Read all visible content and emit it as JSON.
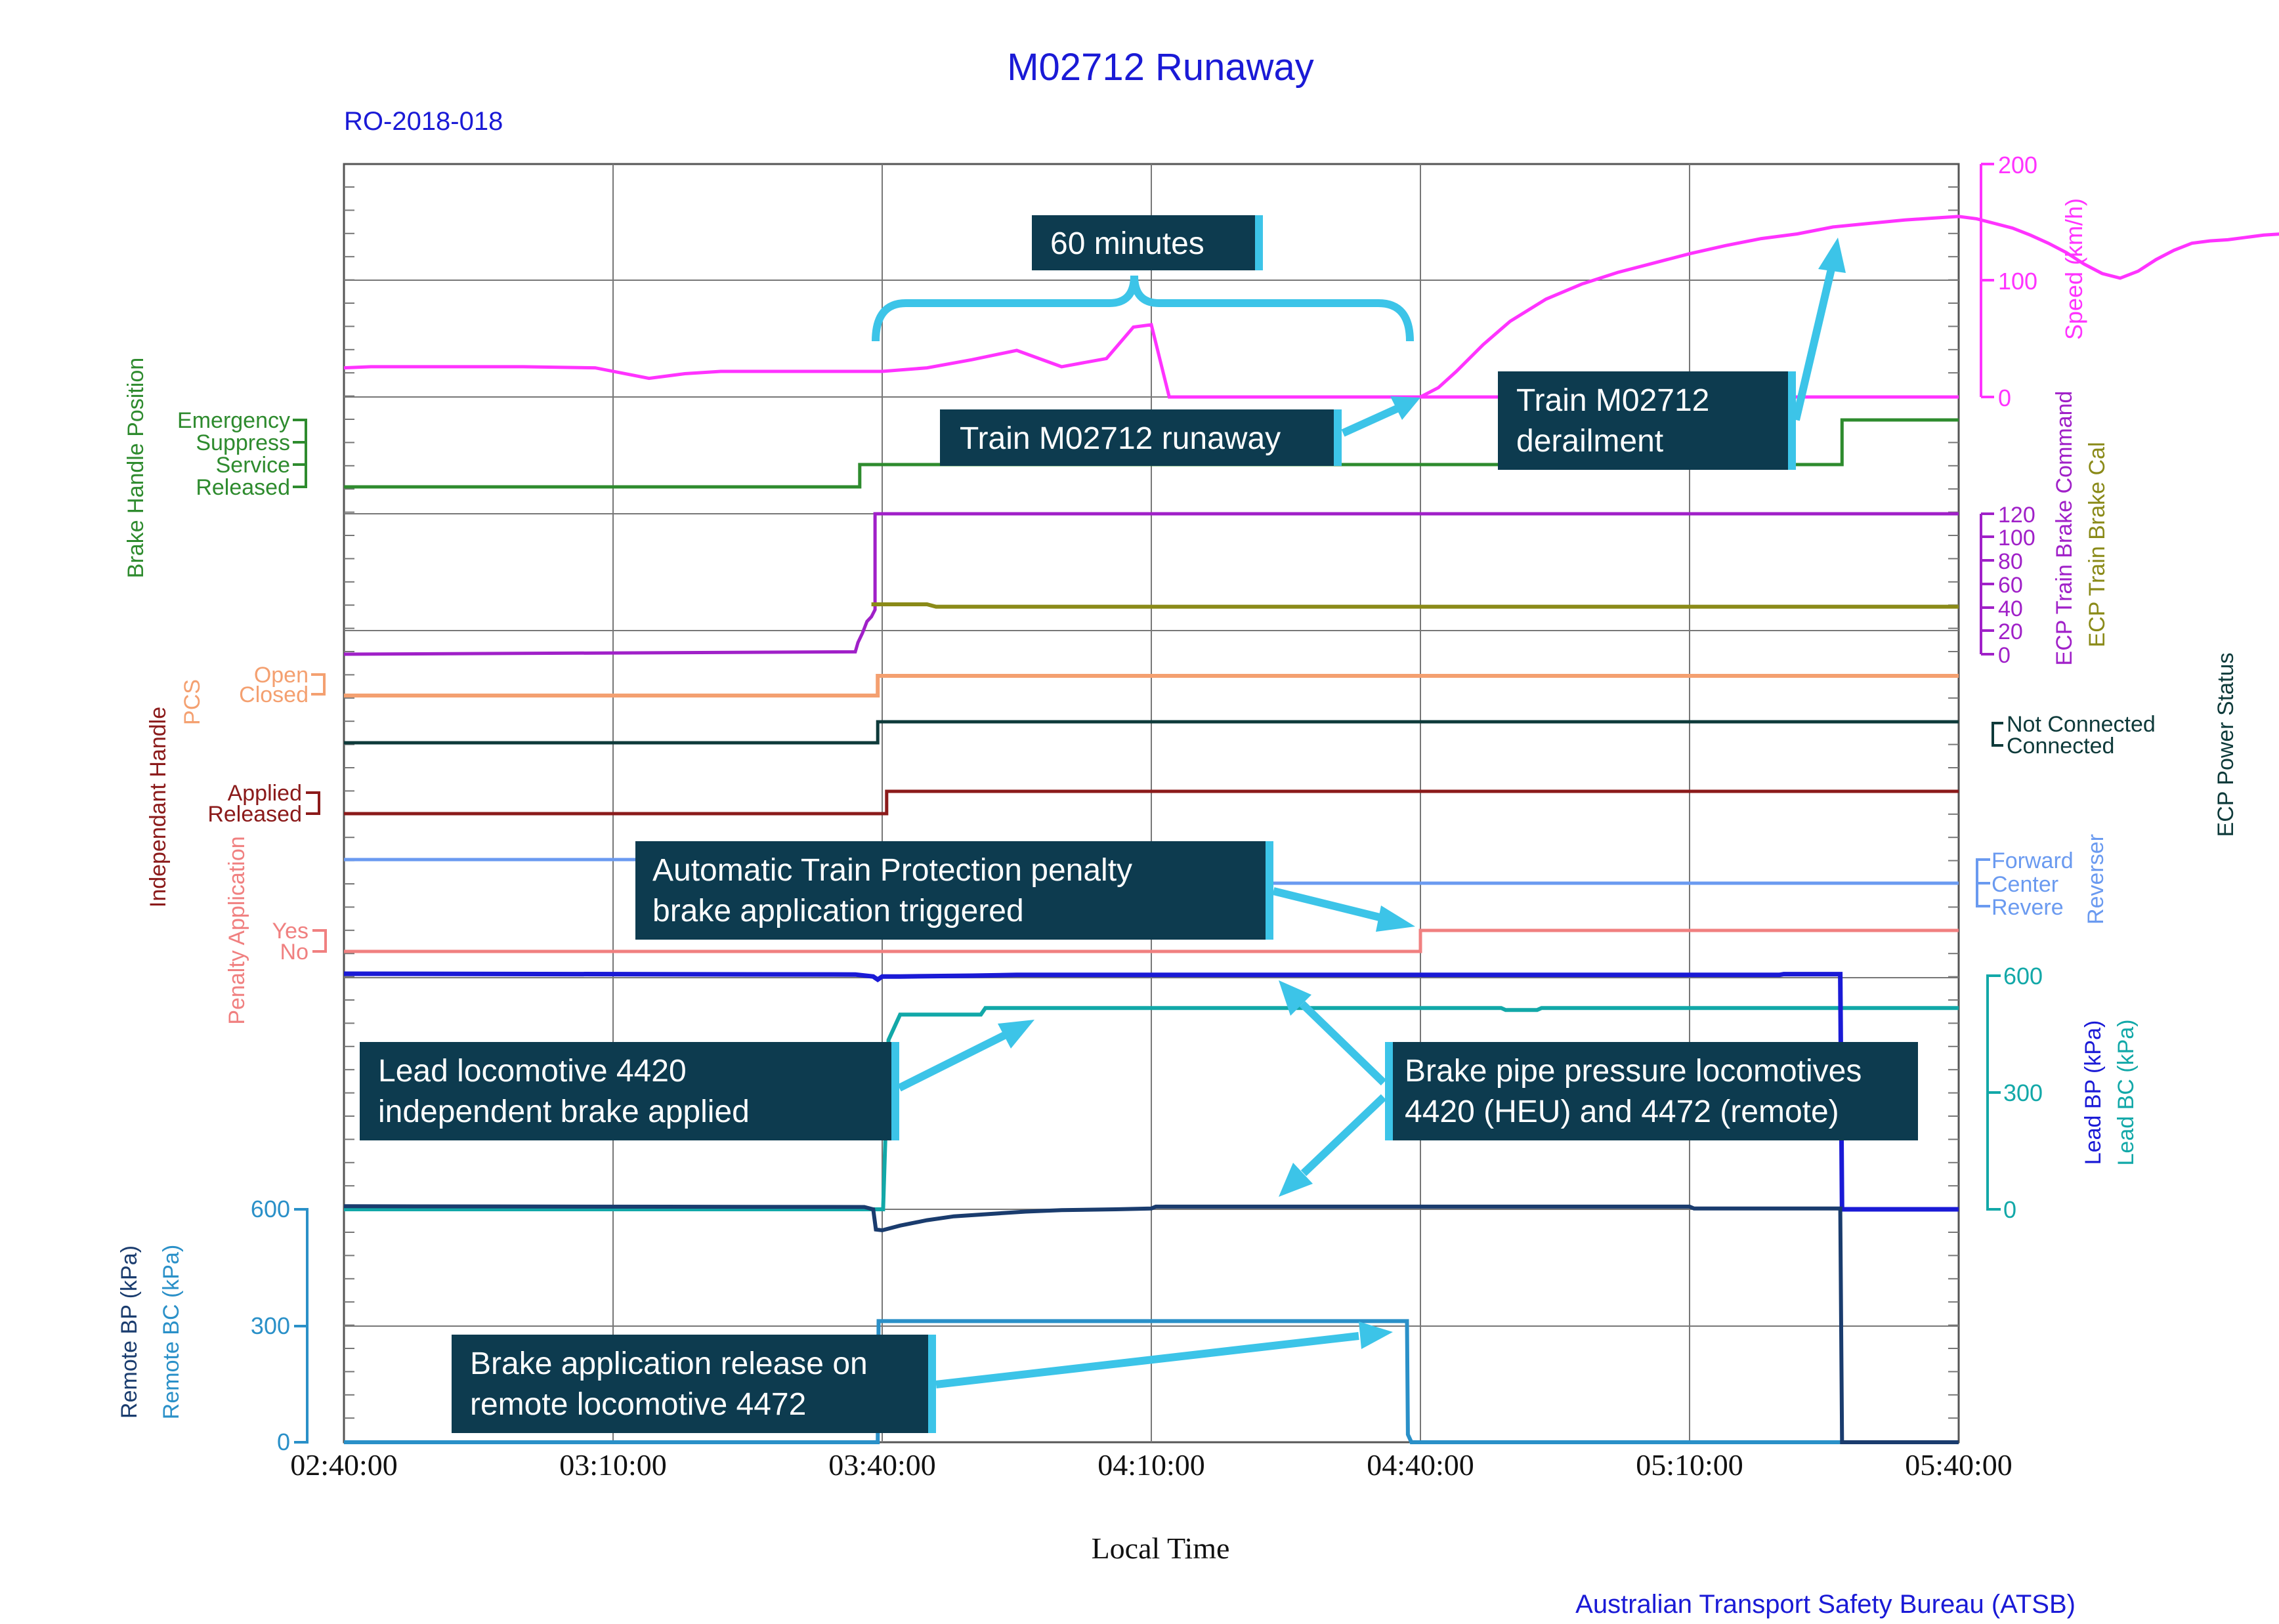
{
  "chart_data": {
    "type": "line",
    "title": "M02712 Runaway",
    "subtitle": "RO-2018-018",
    "xlabel": "Local Time",
    "credit": "Australian Transport Safety Bureau (ATSB)",
    "x_ticks": [
      "02:40:00",
      "03:10:00",
      "03:40:00",
      "04:10:00",
      "04:40:00",
      "05:10:00",
      "05:40:00"
    ],
    "x_range_minutes_after_0240": [
      0,
      180
    ],
    "colors": {
      "title": "#1a1ad6",
      "speed": "#ff33ff",
      "brake_handle": "#2e8b2e",
      "brake_cmd": "#a020c8",
      "brake_cal": "#8a8a18",
      "pcs": "#f4a070",
      "power": "#0e3a3a",
      "independent": "#8b1a1a",
      "reverser": "#6a9af0",
      "penalty": "#f08080",
      "lead_bp": "#1a1ad6",
      "lead_bc": "#12a8a8",
      "remote_bp": "#1a3c6e",
      "remote_bc": "#2a90c8",
      "callout_bg": "#0d3b4f",
      "callout_accent": "#3cc4e8"
    },
    "panels": {
      "speed": {
        "label": "Speed (km/h)",
        "ticks": [
          "200",
          "100",
          "0"
        ],
        "range": [
          0,
          200
        ],
        "series": [
          {
            "x": [
              0,
              3,
              10,
              20,
              28,
              34,
              38,
              42,
              45,
              50,
              55,
              60,
              65,
              70,
              75,
              80,
              85,
              88,
              90,
              92,
              94,
              95,
              95.5,
              96,
              100,
              110,
              120,
              130,
              140,
              150,
              155,
              160,
              165,
              170,
              175,
              180
            ],
            "y": [
              25,
              26,
              26,
              26,
              25,
              16,
              20,
              22,
              22,
              22,
              22,
              22,
              25,
              32,
              40,
              26,
              33,
              60,
              62,
              0,
              0,
              0,
              0,
              0,
              0,
              0,
              0,
              0,
              0,
              0,
              0,
              0,
              0,
              0,
              0,
              0
            ]
          },
          {
            "x": [
              120,
              122,
              124,
              127,
              130,
              134,
              138,
              142,
              146,
              150,
              154,
              158,
              162,
              166,
              170,
              174,
              178,
              180,
              182,
              184,
              186,
              188,
              190,
              192,
              194,
              196,
              198,
              200,
              202,
              204,
              206,
              208,
              210,
              212,
              214,
              216,
              218,
              219,
              220,
              222,
              225,
              230,
              235,
              240
            ],
            "y": [
              0,
              8,
              22,
              45,
              65,
              84,
              97,
              107,
              115,
              123,
              130,
              136,
              140,
              146,
              149,
              152,
              154,
              155,
              153,
              149,
              145,
              139,
              132,
              124,
              114,
              106,
              102,
              108,
              118,
              126,
              132,
              134,
              135,
              137,
              139,
              140,
              138,
              100,
              25,
              0,
              0,
              0,
              0,
              0
            ]
          }
        ]
      },
      "brake_handle": {
        "label": "Brake Handle Position",
        "states": [
          "Emergency",
          "Suppress",
          "Service",
          "Released"
        ],
        "series": [
          {
            "x": [
              0,
              57.5,
              57.5,
              167,
              167,
              180
            ],
            "y": [
              "Released",
              "Released",
              "Service",
              "Service",
              "Suppress+",
              "Suppress+"
            ]
          }
        ]
      },
      "ecp_brake": {
        "labels": [
          "ECP Train Brake Command",
          "ECP Train Brake Cal"
        ],
        "ticks": [
          "120",
          "100",
          "80",
          "60",
          "40",
          "20",
          "0"
        ],
        "range": [
          0,
          120
        ],
        "series": [
          {
            "name": "ECP Train Brake Command",
            "x": [
              0,
              57,
              57.3,
              57.8,
              58.3,
              58.8,
              59.2,
              59.2,
              180
            ],
            "y": [
              0,
              2,
              10,
              18,
              28,
              32,
              38,
              120,
              120
            ]
          },
          {
            "name": "ECP Train Brake Cal",
            "x": [
              58.8,
              59.3,
              65,
              66,
              68,
              180
            ],
            "y": [
              40,
              40,
              40,
              38,
              38,
              38
            ]
          }
        ]
      },
      "pcs": {
        "label": "PCS",
        "states": [
          "Open",
          "Closed"
        ],
        "series": [
          {
            "x": [
              0,
              59.5,
              59.5,
              180
            ],
            "y": [
              "Closed",
              "Closed",
              "Open",
              "Open"
            ]
          }
        ]
      },
      "ecp_power": {
        "label": "ECP Power Status",
        "states": [
          "Not Connected",
          "Connected"
        ],
        "series": [
          {
            "x": [
              0,
              59.5,
              59.5,
              180
            ],
            "y": [
              "Connected",
              "Connected",
              "Not Connected",
              "Not Connected"
            ]
          }
        ]
      },
      "independent": {
        "label": "Independant Handle",
        "states": [
          "Applied",
          "Released"
        ],
        "series": [
          {
            "x": [
              0,
              60.5,
              60.5,
              180
            ],
            "y": [
              "Released",
              "Released",
              "Applied",
              "Applied"
            ]
          }
        ]
      },
      "reverser": {
        "label": "Reverser",
        "states": [
          "Forward",
          "Center",
          "Revere"
        ],
        "series": [
          {
            "x": [
              0,
              100,
              100,
              180
            ],
            "y": [
              "Forward",
              "Forward",
              "Center",
              "Center"
            ]
          }
        ]
      },
      "penalty": {
        "label": "Penalty Application",
        "states": [
          "Yes",
          "No"
        ],
        "series": [
          {
            "x": [
              0,
              120,
              120,
              180
            ],
            "y": [
              "No",
              "No",
              "Yes",
              "Yes"
            ]
          }
        ]
      },
      "lead": {
        "labels": [
          "Lead BP (kPa)",
          "Lead BC (kPa)"
        ],
        "ticks": [
          "600",
          "300",
          "0"
        ],
        "range": [
          0,
          600
        ],
        "series": [
          {
            "name": "Lead BP (kPa)",
            "x": [
              0,
              57,
              59,
              59.5,
              60,
              62,
              70,
              75,
              80,
              100,
              140,
              160,
              160.5,
              166.8,
              167,
              167,
              180
            ],
            "y": [
              605,
              603,
              598,
              590,
              598,
              598,
              600,
              602,
              602,
              602,
              602,
              602,
              604,
              604,
              0,
              0,
              0
            ]
          },
          {
            "name": "Lead BC (kPa)",
            "x": [
              0,
              60,
              60.1,
              60.7,
              62,
              71,
              71.5,
              90,
              120,
              129,
              129.5,
              133,
              133.5,
              180
            ],
            "y": [
              0,
              0,
              0,
              435,
              500,
              500,
              517,
              517,
              517,
              517,
              512,
              512,
              517,
              517
            ]
          }
        ]
      },
      "remote": {
        "labels": [
          "Remote BP (kPa)",
          "Remote BC (kPa)"
        ],
        "ticks": [
          "600",
          "300",
          "0"
        ],
        "range": [
          0,
          600
        ],
        "series": [
          {
            "name": "Remote BP (kPa)",
            "x": [
              0,
              58,
              59,
              59.3,
              60,
              62,
              65,
              68,
              72,
              76,
              80,
              86,
              90,
              90.5,
              120,
              150,
              150.5,
              166,
              166.8,
              167,
              180
            ],
            "y": [
              608,
              606,
              600,
              548,
              546,
              558,
              572,
              582,
              588,
              594,
              598,
              600,
              602,
              607,
              607,
              607,
              602,
              602,
              602,
              0,
              0
            ]
          },
          {
            "name": "Remote BC (kPa)",
            "x": [
              0,
              59.5,
              59.6,
              118.5,
              118.6,
              119,
              180
            ],
            "y": [
              0,
              0,
              312,
              312,
              20,
              0,
              0
            ]
          }
        ]
      }
    },
    "annotations": {
      "sixty_minutes": "60 minutes",
      "runaway": "Train M02712 runaway",
      "derailment_line1": "Train M02712",
      "derailment_line2": "derailment",
      "atp_line1": "Automatic Train Protection penalty",
      "atp_line2": "brake application triggered",
      "lead_ib_line1": "Lead locomotive 4420",
      "lead_ib_line2": "independent brake applied",
      "bp_line1": "Brake pipe pressure locomotives",
      "bp_line2": "4420 (HEU) and 4472 (remote)",
      "release_line1": "Brake application release on",
      "release_line2": "remote locomotive 4472"
    }
  }
}
